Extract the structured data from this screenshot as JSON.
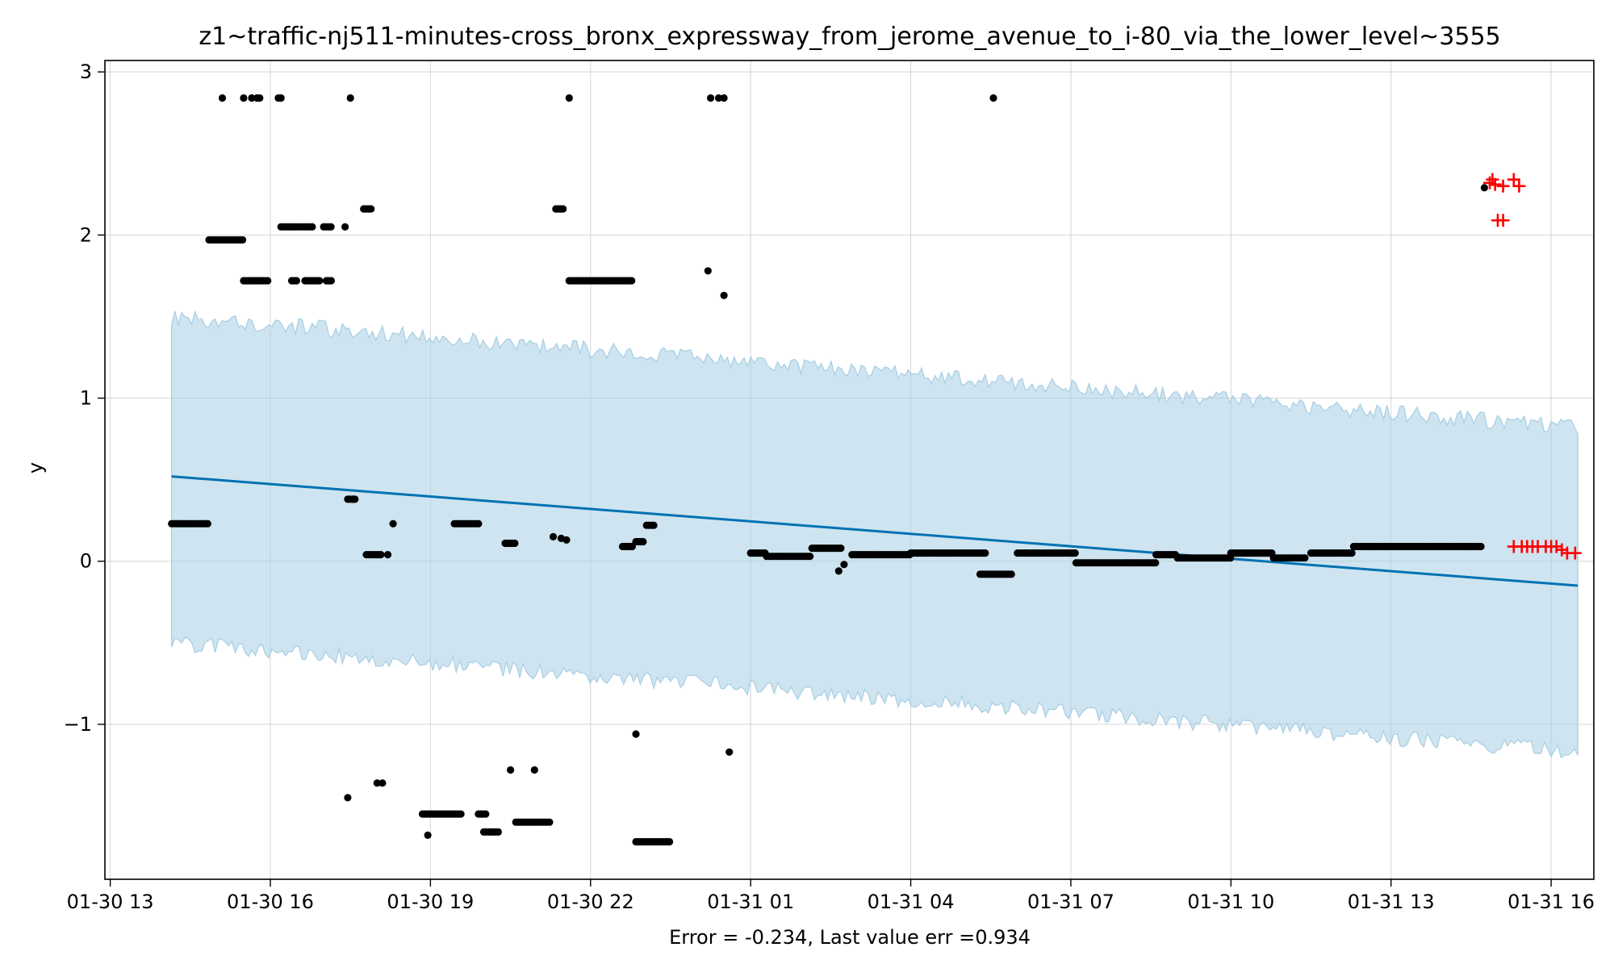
{
  "chart_data": {
    "type": "scatter",
    "title": "z1~traffic-nj511-minutes-cross_bronx_expressway_from_jerome_avenue_to_i-80_via_the_lower_level~3555",
    "xlabel": "Error = -0.234, Last value err =0.934",
    "ylabel": "y",
    "xlim": [
      -0.1,
      27.8
    ],
    "ylim": [
      -1.95,
      3.07
    ],
    "grid": true,
    "x_ticks": [
      {
        "v": 0,
        "label": "01-30 13"
      },
      {
        "v": 3,
        "label": "01-30 16"
      },
      {
        "v": 6,
        "label": "01-30 19"
      },
      {
        "v": 9,
        "label": "01-30 22"
      },
      {
        "v": 12,
        "label": "01-31 01"
      },
      {
        "v": 15,
        "label": "01-31 04"
      },
      {
        "v": 18,
        "label": "01-31 07"
      },
      {
        "v": 21,
        "label": "01-31 10"
      },
      {
        "v": 24,
        "label": "01-31 13"
      },
      {
        "v": 27,
        "label": "01-31 16"
      }
    ],
    "y_ticks": [
      {
        "v": -1,
        "label": "−1"
      },
      {
        "v": 0,
        "label": "0"
      },
      {
        "v": 1,
        "label": "1"
      },
      {
        "v": 2,
        "label": "2"
      },
      {
        "v": 3,
        "label": "3"
      }
    ],
    "forecast": {
      "name": "trend",
      "color": "#0072B2",
      "x": [
        1.15,
        27.5
      ],
      "y": [
        0.52,
        -0.15
      ]
    },
    "band": {
      "name": "uncertainty interval",
      "color": "#A6CEE3",
      "x_start": 1.15,
      "x_end": 27.5,
      "upper_start": 1.5,
      "upper_end": 0.82,
      "lower_start": -0.5,
      "lower_end": -1.17,
      "noise": 0.05
    },
    "observed": {
      "name": "observed",
      "color": "#000000",
      "segments": [
        [
          1.15,
          1.85,
          0.23
        ],
        [
          1.85,
          2.5,
          1.97
        ],
        [
          2.5,
          2.95,
          1.72
        ],
        [
          3.2,
          3.8,
          2.05
        ],
        [
          3.4,
          3.5,
          1.72
        ],
        [
          3.65,
          3.95,
          1.72
        ],
        [
          4.0,
          4.15,
          2.05
        ],
        [
          4.05,
          4.15,
          1.72
        ],
        [
          4.45,
          4.6,
          0.38
        ],
        [
          4.75,
          4.9,
          2.16
        ],
        [
          4.8,
          5.1,
          0.04
        ],
        [
          6.45,
          6.9,
          0.23
        ],
        [
          7.4,
          7.6,
          0.11
        ],
        [
          8.35,
          8.5,
          2.16
        ],
        [
          8.6,
          9.8,
          1.72
        ],
        [
          9.6,
          9.8,
          0.09
        ],
        [
          9.85,
          10.0,
          0.12
        ],
        [
          10.05,
          10.2,
          0.22
        ],
        [
          12.0,
          12.3,
          0.05
        ],
        [
          12.3,
          13.15,
          0.03
        ],
        [
          13.15,
          13.7,
          0.08
        ],
        [
          13.9,
          15.0,
          0.04
        ],
        [
          15.0,
          16.4,
          0.05
        ],
        [
          16.3,
          16.9,
          -0.08
        ],
        [
          17.0,
          18.1,
          0.05
        ],
        [
          18.1,
          19.6,
          -0.01
        ],
        [
          19.6,
          20.0,
          0.04
        ],
        [
          20.0,
          21.0,
          0.02
        ],
        [
          21.0,
          21.8,
          0.05
        ],
        [
          21.8,
          22.4,
          0.02
        ],
        [
          22.5,
          23.3,
          0.05
        ],
        [
          23.3,
          25.7,
          0.09
        ],
        [
          5.85,
          6.6,
          -1.55
        ],
        [
          6.9,
          7.05,
          -1.55
        ],
        [
          7.0,
          7.3,
          -1.66
        ],
        [
          7.6,
          8.25,
          -1.6
        ],
        [
          9.85,
          10.5,
          -1.72
        ]
      ],
      "points": [
        [
          2.1,
          2.84
        ],
        [
          2.5,
          2.84
        ],
        [
          2.65,
          2.84
        ],
        [
          2.75,
          2.84
        ],
        [
          2.8,
          2.84
        ],
        [
          3.15,
          2.84
        ],
        [
          3.2,
          2.84
        ],
        [
          4.5,
          2.84
        ],
        [
          8.6,
          2.84
        ],
        [
          11.25,
          2.84
        ],
        [
          11.4,
          2.84
        ],
        [
          11.5,
          2.84
        ],
        [
          16.55,
          2.84
        ],
        [
          4.4,
          2.05
        ],
        [
          11.2,
          1.78
        ],
        [
          11.5,
          1.63
        ],
        [
          4.55,
          0.38
        ],
        [
          5.2,
          0.04
        ],
        [
          5.3,
          0.23
        ],
        [
          8.3,
          0.15
        ],
        [
          8.45,
          0.14
        ],
        [
          8.55,
          0.13
        ],
        [
          13.65,
          -0.06
        ],
        [
          13.75,
          -0.02
        ],
        [
          4.45,
          -1.45
        ],
        [
          5.0,
          -1.36
        ],
        [
          5.1,
          -1.36
        ],
        [
          5.95,
          -1.68
        ],
        [
          7.5,
          -1.28
        ],
        [
          7.95,
          -1.28
        ],
        [
          9.85,
          -1.06
        ],
        [
          11.6,
          -1.17
        ],
        [
          25.75,
          2.29
        ]
      ]
    },
    "outliers": {
      "name": "anomalies",
      "color": "#FF0000",
      "points": [
        [
          25.85,
          2.32
        ],
        [
          25.9,
          2.34
        ],
        [
          25.95,
          2.31
        ],
        [
          26.1,
          2.3
        ],
        [
          26.3,
          2.34
        ],
        [
          26.4,
          2.3
        ],
        [
          26.0,
          2.09
        ],
        [
          26.1,
          2.09
        ],
        [
          26.3,
          0.09
        ],
        [
          26.45,
          0.09
        ],
        [
          26.55,
          0.09
        ],
        [
          26.65,
          0.09
        ],
        [
          26.75,
          0.09
        ],
        [
          26.9,
          0.09
        ],
        [
          27.0,
          0.09
        ],
        [
          27.1,
          0.09
        ],
        [
          27.2,
          0.07
        ],
        [
          27.3,
          0.05
        ],
        [
          27.45,
          0.05
        ]
      ]
    }
  }
}
